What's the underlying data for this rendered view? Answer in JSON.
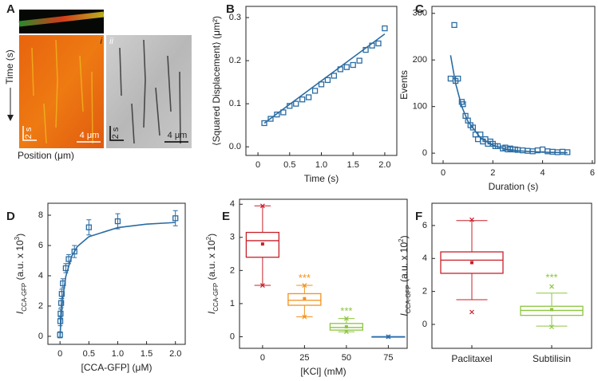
{
  "panel_a": {
    "panel": "A",
    "ylabel": "Time (s)",
    "xlabel": "Position (μm)",
    "kymographs": [
      {
        "name": "i",
        "time_bar": "2 s",
        "scale_bar": "4 μm"
      },
      {
        "name": "ii",
        "time_bar": "2 s",
        "scale_bar": "4 μm"
      }
    ]
  },
  "chart_data": [
    {
      "type": "scatter",
      "panel": "B",
      "xlabel": "Time (s)",
      "ylabel": "⟨Squared Displacement⟩ (μm²)",
      "xlim": [
        -0.19,
        2.19
      ],
      "ylim": [
        -0.02,
        0.326
      ],
      "xticks": [
        0,
        0.5,
        {
          "value": 1,
          "label": "1.0"
        },
        1.5,
        {
          "value": 2,
          "label": "2.0"
        }
      ],
      "yticks": [
        {
          "value": 0,
          "label": "0.0"
        },
        0.1,
        0.2,
        0.3
      ],
      "series": [
        {
          "style": "markers",
          "color": "#2b6ca3",
          "x": [
            0.1,
            0.2,
            0.3,
            0.4,
            0.5,
            0.6,
            0.7,
            0.8,
            0.9,
            1.0,
            1.1,
            1.2,
            1.3,
            1.4,
            1.5,
            1.6,
            1.7,
            1.8,
            1.9,
            2.0
          ],
          "values": [
            0.055,
            0.065,
            0.075,
            0.08,
            0.095,
            0.1,
            0.11,
            0.115,
            0.13,
            0.145,
            0.155,
            0.165,
            0.18,
            0.185,
            0.19,
            0.2,
            0.225,
            0.235,
            0.24,
            0.275
          ]
        },
        {
          "style": "line",
          "color": "#2b6ca3",
          "x": [
            0.1,
            2.0
          ],
          "values": [
            0.055,
            0.262
          ]
        }
      ]
    },
    {
      "type": "scatter",
      "panel": "C",
      "xlabel": "Duration (s)",
      "ylabel": "Events",
      "xlim": [
        -0.45,
        6.1
      ],
      "ylim": [
        -22,
        315
      ],
      "xticks": [
        0,
        2,
        4,
        6
      ],
      "yticks": [
        0,
        100,
        200,
        300
      ],
      "series": [
        {
          "style": "markers",
          "color": "#2b6ca3",
          "x": [
            0.3,
            0.45,
            0.5,
            0.6,
            0.75,
            0.8,
            0.9,
            1.0,
            1.1,
            1.2,
            1.3,
            1.4,
            1.5,
            1.6,
            1.7,
            1.8,
            1.9,
            2.0,
            2.1,
            2.2,
            2.4,
            2.5,
            2.6,
            2.7,
            2.8,
            2.9,
            3.0,
            3.2,
            3.4,
            3.6,
            3.8,
            4.0,
            4.2,
            4.4,
            4.6,
            4.8,
            5.0
          ],
          "values": [
            160,
            275,
            155,
            160,
            110,
            105,
            80,
            70,
            60,
            55,
            40,
            30,
            40,
            25,
            30,
            20,
            25,
            20,
            15,
            15,
            10,
            12,
            8,
            10,
            8,
            8,
            7,
            6,
            5,
            4,
            6,
            8,
            4,
            3,
            2,
            3,
            2
          ]
        },
        {
          "style": "line",
          "color": "#2b6ca3",
          "x": [
            0.3,
            0.5,
            0.75,
            1,
            1.5,
            2,
            2.5,
            3,
            4,
            5
          ],
          "values": [
            210,
            150,
            100,
            68,
            33,
            17,
            9,
            5,
            2,
            1
          ]
        }
      ]
    },
    {
      "type": "scatter",
      "panel": "D",
      "xlabel": "[CCA-GFP] (μM)",
      "ylabel": [
        "I",
        "CCA-GFP",
        " (a.u. x 10",
        "3",
        ")"
      ],
      "xlim": [
        -0.21,
        2.17
      ],
      "ylim": [
        -0.53,
        8.79
      ],
      "xticks": [
        0,
        0.5,
        {
          "value": 1,
          "label": "1.0"
        },
        1.5,
        {
          "value": 2,
          "label": "2.0"
        }
      ],
      "yticks": [
        0,
        2,
        4,
        6,
        8
      ],
      "series": [
        {
          "style": "markers",
          "color": "#2b6ca3",
          "x": [
            0,
            0.005,
            0.01,
            0.02,
            0.03,
            0.05,
            0.1,
            0.15,
            0.25,
            0.5,
            1.0,
            2.0
          ],
          "values": [
            0.1,
            1.0,
            1.5,
            2.2,
            2.8,
            3.5,
            4.5,
            5.1,
            5.6,
            7.2,
            7.6,
            7.8
          ],
          "errors": [
            0.2,
            0.3,
            0.3,
            0.3,
            0.3,
            0.3,
            0.3,
            0.3,
            0.4,
            0.5,
            0.5,
            0.5
          ]
        },
        {
          "style": "line",
          "color": "#2b6ca3",
          "x": [
            0,
            0.02,
            0.05,
            0.1,
            0.2,
            0.3,
            0.5,
            1,
            1.5,
            2
          ],
          "values": [
            0,
            1.3,
            2.6,
            3.95,
            5.27,
            5.93,
            6.58,
            7.18,
            7.41,
            7.52
          ]
        }
      ]
    },
    {
      "type": "box",
      "panel": "E",
      "xlabel": "[KCl] (mM)",
      "ylabel": [
        "I",
        "CCA-GFP",
        " (a.u. x 10",
        "2",
        ")"
      ],
      "ylim": [
        -0.35,
        4.15
      ],
      "yticks": [
        0,
        1,
        2,
        3,
        4
      ],
      "categories": [
        "0",
        "25",
        "50",
        "75"
      ],
      "boxes": [
        {
          "min": 1.55,
          "q1": 2.4,
          "median": 2.9,
          "q3": 3.15,
          "max": 3.95,
          "mean": 2.8,
          "extremes": [
            1.55,
            3.95
          ],
          "color": "#c8202a"
        },
        {
          "min": 0.6,
          "q1": 0.95,
          "median": 1.1,
          "q3": 1.3,
          "max": 1.55,
          "mean": 1.15,
          "extremes": [
            0.6,
            1.55
          ],
          "color": "#f29220"
        },
        {
          "min": 0.15,
          "q1": 0.2,
          "median": 0.28,
          "q3": 0.4,
          "max": 0.55,
          "mean": 0.3,
          "extremes": [
            0.15,
            0.55
          ],
          "color": "#8cc63e"
        },
        {
          "min": 0,
          "q1": 0,
          "median": 0,
          "q3": 0,
          "max": 0,
          "mean": 0,
          "extremes": [
            0,
            0
          ],
          "color": "#2c6fad"
        }
      ],
      "annotations": [
        {
          "category": "25",
          "text": "***",
          "color": "#f29220",
          "y": 1.75
        },
        {
          "category": "50",
          "text": "***",
          "color": "#8cc63e",
          "y": 0.75
        }
      ]
    },
    {
      "type": "box",
      "panel": "F",
      "ylabel": [
        "I",
        "CCA-GFP",
        " (a.u. x 10",
        "2",
        ")"
      ],
      "ylim": [
        -1.45,
        7.35
      ],
      "yticks": [
        0,
        2,
        4,
        6
      ],
      "categories": [
        "Paclitaxel",
        "Subtilisin"
      ],
      "boxes": [
        {
          "min": 1.5,
          "q1": 3.1,
          "median": 3.9,
          "q3": 4.4,
          "max": 6.3,
          "mean": 3.75,
          "extremes": [
            0.75,
            6.35
          ],
          "color": "#c8202a"
        },
        {
          "min": -0.1,
          "q1": 0.55,
          "median": 0.85,
          "q3": 1.1,
          "max": 1.9,
          "mean": 0.9,
          "extremes": [
            -0.15,
            2.3
          ],
          "color": "#8cc63e"
        }
      ],
      "annotations": [
        {
          "category": "Subtilisin",
          "text": "***",
          "color": "#8cc63e",
          "y": 2.8
        }
      ]
    }
  ]
}
